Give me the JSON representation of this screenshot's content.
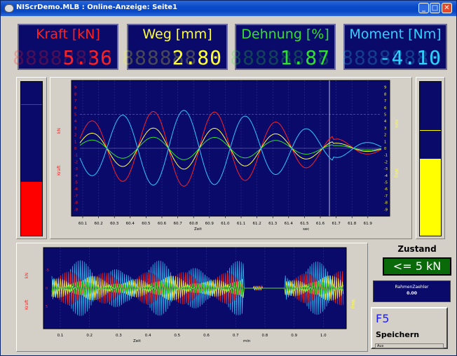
{
  "window": {
    "title": "NIScrDemo.MLB : Online-Anzeige: Seite1",
    "controls": [
      "_",
      "□",
      "✕"
    ]
  },
  "displays": [
    {
      "label": "Kraft   [kN]",
      "value": "5.36",
      "ghost": "88888888",
      "color": "#ff2020"
    },
    {
      "label": "Weg   [mm]",
      "value": "2.80",
      "ghost": "88888888",
      "color": "#ffff30"
    },
    {
      "label": "Dehnung  [%]",
      "value": "1.87",
      "ghost": "88888888",
      "color": "#30e030"
    },
    {
      "label": "Moment [Nm]",
      "value": "-4.10",
      "ghost": "88888888",
      "color": "#30d0ff"
    }
  ],
  "left_bar": {
    "level": 0.35,
    "color": "#ff0000",
    "marker": 0.85
  },
  "right_bar": {
    "level": 0.5,
    "color": "#ffff00",
    "marker": 0.68
  },
  "main_chart": {
    "x_ticks": [
      "60.1",
      "60.2",
      "60.3",
      "60.4",
      "60.5",
      "60.6",
      "60.7",
      "60.8",
      "60.9",
      "61.0",
      "61.1",
      "61.2",
      "61.3",
      "61.4",
      "61.5",
      "61.6",
      "61.7",
      "61.8",
      "61.9"
    ],
    "y_ticks_left": [
      "9",
      "8",
      "7",
      "6",
      "5",
      "4",
      "3",
      "2",
      "1",
      "0",
      "-1",
      "-2",
      "-3",
      "-4",
      "-5",
      "-6",
      "-7",
      "-8",
      "-9"
    ],
    "y_unit_left": "kN",
    "y_label_left": "Kraft",
    "y_unit_right": "mm",
    "y_label_right": "Weg",
    "x_label": "Zeit",
    "x_unit": "sec",
    "colors": {
      "kraft": "#ff2020",
      "weg": "#ffff40",
      "dehnung": "#30e030",
      "moment": "#30c8ff"
    }
  },
  "bottom_chart": {
    "x_ticks": [
      "0.1",
      "0.2",
      "0.3",
      "0.4",
      "0.5",
      "0.6",
      "0.7",
      "0.8",
      "0.9",
      "1.0"
    ],
    "y_ticks_left": [
      "5",
      "0",
      "-5"
    ],
    "y_unit_left": "kN",
    "y_label_left": "Kraft",
    "y_label_right": "Weg",
    "x_label": "Zeit",
    "x_unit": "min"
  },
  "status": {
    "title": "Zustand",
    "value": "<= 5 kN",
    "counter_label": "RahmenZaehler",
    "counter_value": "0.00"
  },
  "f5": {
    "key": "F5",
    "label": "Speichern",
    "status": "Aus"
  }
}
